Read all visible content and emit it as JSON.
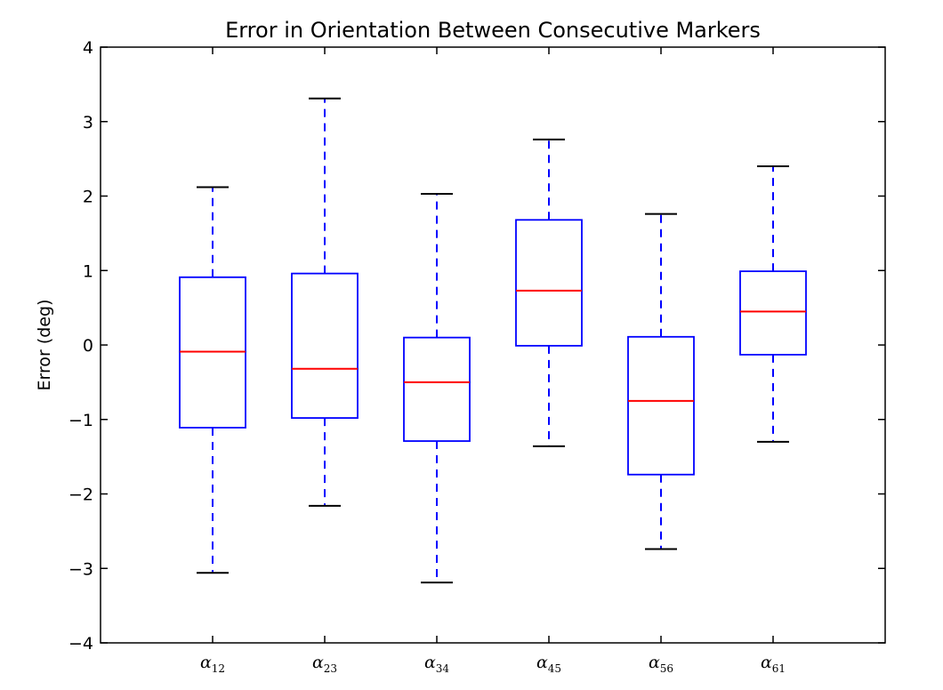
{
  "chart_data": {
    "type": "boxplot",
    "title": "Error in Orientation Between Consecutive Markers",
    "xlabel": "",
    "ylabel": "Error (deg)",
    "ylim": [
      -4,
      4
    ],
    "yticks": [
      -4,
      -3,
      -2,
      -1,
      0,
      1,
      2,
      3,
      4
    ],
    "ytick_labels": [
      "−4",
      "−3",
      "−2",
      "−1",
      "0",
      "1",
      "2",
      "3",
      "4"
    ],
    "grid": false,
    "categories": [
      {
        "symbol": "α",
        "subscript": "12"
      },
      {
        "symbol": "α",
        "subscript": "23"
      },
      {
        "symbol": "α",
        "subscript": "34"
      },
      {
        "symbol": "α",
        "subscript": "45"
      },
      {
        "symbol": "α",
        "subscript": "56"
      },
      {
        "symbol": "α",
        "subscript": "61"
      }
    ],
    "boxes": [
      {
        "whisker_low": -3.06,
        "q1": -1.11,
        "median": -0.09,
        "q3": 0.91,
        "whisker_high": 2.12
      },
      {
        "whisker_low": -2.16,
        "q1": -0.98,
        "median": -0.32,
        "q3": 0.96,
        "whisker_high": 3.31
      },
      {
        "whisker_low": -3.19,
        "q1": -1.29,
        "median": -0.5,
        "q3": 0.1,
        "whisker_high": 2.03
      },
      {
        "whisker_low": -1.36,
        "q1": -0.01,
        "median": 0.73,
        "q3": 1.68,
        "whisker_high": 2.76
      },
      {
        "whisker_low": -2.74,
        "q1": -1.74,
        "median": -0.75,
        "q3": 0.11,
        "whisker_high": 1.76
      },
      {
        "whisker_low": -1.3,
        "q1": -0.13,
        "median": 0.45,
        "q3": 0.99,
        "whisker_high": 2.4
      }
    ],
    "colors": {
      "box": "#0000ff",
      "whisker": "#0000ff",
      "median": "#ff0000",
      "cap": "#000000",
      "frame": "#000000"
    }
  }
}
